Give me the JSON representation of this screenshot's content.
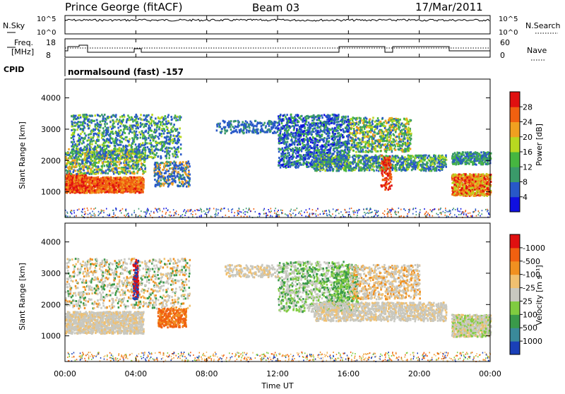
{
  "header": {
    "station": "Prince George (fitACF)",
    "beam": "Beam 03",
    "date": "17/Mar/2011"
  },
  "panels": {
    "nsky": {
      "label": "N.Sky",
      "ticks": [
        "10^5",
        "10^0"
      ],
      "right_label": "N.Search",
      "right_ticks": [
        "10^5",
        "10^0"
      ]
    },
    "freq": {
      "label_top": "Freq.",
      "label_bottom": "[MHz]",
      "ticks": [
        "18",
        "8"
      ],
      "right_label": "Nave",
      "right_ticks": [
        "60",
        "0"
      ]
    },
    "cpid": {
      "label": "CPID",
      "text": "normalsound (fast) -157"
    }
  },
  "chart_data": [
    {
      "type": "heatmap",
      "name": "power",
      "ylabel": "Slant Range [km]",
      "ylim": [
        180,
        4600
      ],
      "yticks": [
        "1000",
        "2000",
        "3000",
        "4000"
      ],
      "colorbar": {
        "label": "Power [dB]",
        "ticks": [
          "4",
          "8",
          "12",
          "16",
          "20",
          "24",
          "28"
        ],
        "colors": [
          "#1010e0",
          "#2858c8",
          "#3a9a6a",
          "#46b640",
          "#b8d820",
          "#f0a020",
          "#f06010",
          "#e01010"
        ]
      }
    },
    {
      "type": "heatmap",
      "name": "velocity",
      "ylabel": "Slant Range [km]",
      "ylim": [
        180,
        4600
      ],
      "yticks": [
        "1000",
        "2000",
        "3000",
        "4000"
      ],
      "colorbar": {
        "label": "Velocity [m s⁻¹]",
        "ticks": [
          "1000",
          "500",
          "100",
          "25",
          "-25",
          "-100",
          "-500",
          "-1000"
        ],
        "colors": [
          "#1a40b8",
          "#3a8a9a",
          "#3a9a4a",
          "#80cc40",
          "#c8c8c0",
          "#f0c070",
          "#f09020",
          "#f06010",
          "#e01010"
        ]
      }
    }
  ],
  "xaxis": {
    "label": "Time UT",
    "ticks": [
      "00:00",
      "04:00",
      "08:00",
      "12:00",
      "16:00",
      "20:00",
      "00:00"
    ]
  }
}
